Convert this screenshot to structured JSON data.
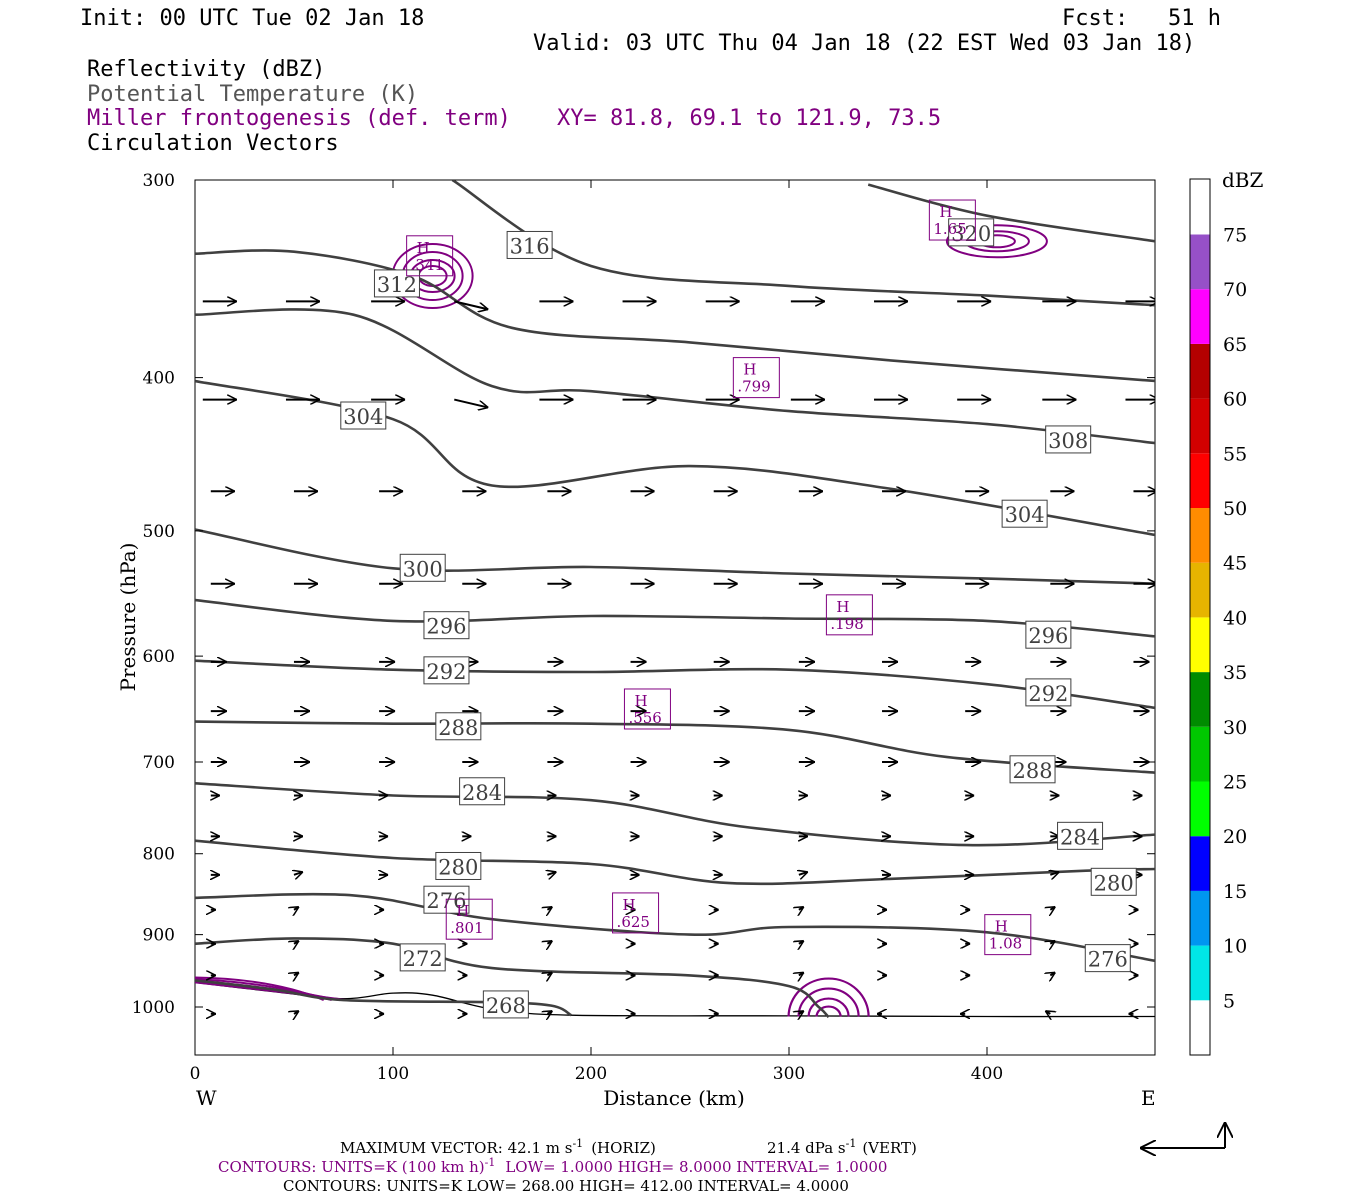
{
  "header": {
    "init": "Init: 00 UTC Tue 02 Jan 18",
    "fcst_label": "Fcst:",
    "fcst_value": "51 h",
    "valid": "Valid: 03 UTC Thu 04 Jan 18 (22 EST Wed 03 Jan 18)"
  },
  "fields": {
    "reflectivity": "Reflectivity (dBZ)",
    "theta": "Potential Temperature (K)",
    "frontogenesis": "Miller frontogenesis (def. term)",
    "xy": "XY=  81.8, 69.1 to 121.9, 73.5",
    "vectors": "Circulation Vectors"
  },
  "axes": {
    "ylabel": "Pressure (hPa)",
    "xlabel": "Distance (km)",
    "west": "W",
    "east": "E",
    "y_ticks": [
      "300",
      "400",
      "500",
      "600",
      "700",
      "800",
      "900",
      "1000"
    ],
    "x_ticks": [
      "0",
      "100",
      "200",
      "300",
      "400"
    ]
  },
  "colorbar": {
    "title": "dBZ",
    "labels": [
      "5",
      "10",
      "15",
      "20",
      "25",
      "30",
      "35",
      "40",
      "45",
      "50",
      "55",
      "60",
      "65",
      "70",
      "75"
    ],
    "colors": [
      "#ffffff",
      "#00e6e6",
      "#0096f0",
      "#0000ff",
      "#00ff00",
      "#00c800",
      "#008c00",
      "#ffff00",
      "#e6b400",
      "#ff8c00",
      "#ff0000",
      "#d20000",
      "#b40000",
      "#ff00ff",
      "#9650c8",
      "#ffffff"
    ]
  },
  "footer": {
    "vector_max": "MAXIMUM VECTOR:  42.1 m s",
    "vector_horiz": "(HORIZ)",
    "vector_vert": "21.4 dPa s",
    "vector_vert_unit": "(VERT)",
    "contours_fronto": "CONTOURS:  UNITS=K (100 km h)",
    "fronto_rest": "LOW=   1.0000      HIGH=  8.0000      INTERVAL=   1.0000",
    "contours_theta": "CONTOURS:  UNITS=K   LOW=   268.00       HIGH=   412.00       INTERVAL=    4.0000"
  },
  "chart_data": {
    "type": "cross-section",
    "x_range_km": [
      0,
      485
    ],
    "y_range_hpa": [
      300,
      1040
    ],
    "y_scale": "log-pressure",
    "grid": false,
    "theta_contours": [
      {
        "value": 268,
        "pts": [
          [
            0,
            962
          ],
          [
            40,
            975
          ],
          [
            75,
            990
          ],
          [
            150,
            993
          ],
          [
            180,
            998
          ],
          [
            190,
            1012
          ]
        ],
        "labels": [
          {
            "x": 157,
            "y": 997,
            "text": "268"
          }
        ]
      },
      {
        "value": 272,
        "pts": [
          [
            0,
            912
          ],
          [
            50,
            905
          ],
          [
            100,
            912
          ],
          [
            150,
            945
          ],
          [
            250,
            955
          ],
          [
            300,
            970
          ],
          [
            315,
            1000
          ],
          [
            320,
            1015
          ]
        ],
        "labels": [
          {
            "x": 115,
            "y": 931,
            "text": "272"
          }
        ]
      },
      {
        "value": 276,
        "pts": [
          [
            0,
            853
          ],
          [
            80,
            850
          ],
          [
            150,
            880
          ],
          [
            250,
            900
          ],
          [
            300,
            890
          ],
          [
            400,
            897
          ],
          [
            485,
            935
          ]
        ],
        "labels": [
          {
            "x": 127,
            "y": 856,
            "text": "276"
          },
          {
            "x": 461,
            "y": 932,
            "text": "276"
          }
        ]
      },
      {
        "value": 280,
        "pts": [
          [
            0,
            785
          ],
          [
            100,
            805
          ],
          [
            200,
            812
          ],
          [
            270,
            835
          ],
          [
            350,
            830
          ],
          [
            450,
            820
          ],
          [
            485,
            818
          ]
        ],
        "labels": [
          {
            "x": 133,
            "y": 815,
            "text": "280"
          },
          {
            "x": 464,
            "y": 834,
            "text": "280"
          }
        ]
      },
      {
        "value": 284,
        "pts": [
          [
            0,
            722
          ],
          [
            100,
            735
          ],
          [
            200,
            740
          ],
          [
            280,
            770
          ],
          [
            390,
            790
          ],
          [
            485,
            778
          ]
        ],
        "labels": [
          {
            "x": 145,
            "y": 731,
            "text": "284"
          },
          {
            "x": 447,
            "y": 780,
            "text": "284"
          }
        ]
      },
      {
        "value": 288,
        "pts": [
          [
            0,
            660
          ],
          [
            100,
            662
          ],
          [
            200,
            662
          ],
          [
            300,
            668
          ],
          [
            380,
            695
          ],
          [
            485,
            711
          ]
        ],
        "labels": [
          {
            "x": 133,
            "y": 665,
            "text": "288"
          },
          {
            "x": 423,
            "y": 708,
            "text": "288"
          }
        ]
      },
      {
        "value": 292,
        "pts": [
          [
            0,
            604
          ],
          [
            100,
            612
          ],
          [
            200,
            614
          ],
          [
            300,
            612
          ],
          [
            400,
            625
          ],
          [
            485,
            647
          ]
        ],
        "labels": [
          {
            "x": 127,
            "y": 613,
            "text": "292"
          },
          {
            "x": 431,
            "y": 633,
            "text": "292"
          }
        ]
      },
      {
        "value": 296,
        "pts": [
          [
            0,
            553
          ],
          [
            100,
            570
          ],
          [
            200,
            566
          ],
          [
            300,
            568
          ],
          [
            400,
            570
          ],
          [
            485,
            583
          ]
        ],
        "labels": [
          {
            "x": 127,
            "y": 574,
            "text": "296"
          },
          {
            "x": 431,
            "y": 582,
            "text": "296"
          }
        ]
      },
      {
        "value": 300,
        "pts": [
          [
            0,
            499
          ],
          [
            100,
            528
          ],
          [
            200,
            527
          ],
          [
            300,
            532
          ],
          [
            400,
            536
          ],
          [
            485,
            540
          ]
        ],
        "labels": [
          {
            "x": 115,
            "y": 528,
            "text": "300"
          }
        ]
      },
      {
        "value": 304,
        "pts": [
          [
            0,
            402
          ],
          [
            100,
            425
          ],
          [
            150,
            468
          ],
          [
            250,
            455
          ],
          [
            350,
            470
          ],
          [
            485,
            503
          ]
        ],
        "labels": [
          {
            "x": 85,
            "y": 423,
            "text": "304"
          },
          {
            "x": 419,
            "y": 488,
            "text": "304"
          }
        ]
      },
      {
        "value": 308,
        "pts": [
          [
            0,
            365
          ],
          [
            80,
            365
          ],
          [
            150,
            405
          ],
          [
            200,
            408
          ],
          [
            300,
            420
          ],
          [
            400,
            428
          ],
          [
            485,
            440
          ]
        ],
        "labels": [
          {
            "x": 441,
            "y": 438,
            "text": "308"
          }
        ]
      },
      {
        "value": 312,
        "pts": [
          [
            0,
            334
          ],
          [
            50,
            333
          ],
          [
            110,
            345
          ],
          [
            160,
            372
          ],
          [
            250,
            380
          ],
          [
            350,
            390
          ],
          [
            485,
            402
          ]
        ],
        "labels": [
          {
            "x": 102,
            "y": 349,
            "text": "312"
          }
        ]
      },
      {
        "value": 316,
        "pts": [
          [
            130,
            300
          ],
          [
            200,
            340
          ],
          [
            300,
            350
          ],
          [
            400,
            355
          ],
          [
            485,
            360
          ]
        ],
        "labels": [
          {
            "x": 169,
            "y": 330,
            "text": "316"
          }
        ]
      },
      {
        "value": 320,
        "pts": [
          [
            340,
            302
          ],
          [
            400,
            316
          ],
          [
            485,
            328
          ]
        ],
        "labels": [
          {
            "x": 392,
            "y": 324,
            "text": "320"
          }
        ]
      }
    ],
    "fronto_maxima": [
      {
        "x": 118,
        "y": 335,
        "value": ".341"
      },
      {
        "x": 382,
        "y": 318,
        "value": "1.65"
      },
      {
        "x": 283,
        "y": 400,
        "value": ".799"
      },
      {
        "x": 330,
        "y": 565,
        "value": ".198"
      },
      {
        "x": 228,
        "y": 648,
        "value": ".556"
      },
      {
        "x": 222,
        "y": 872,
        "value": ".625"
      },
      {
        "x": 138,
        "y": 880,
        "value": ".801"
      },
      {
        "x": 410,
        "y": 900,
        "value": "1.08"
      }
    ],
    "terrain_hpa": [
      [
        0,
        965
      ],
      [
        40,
        978
      ],
      [
        75,
        988
      ],
      [
        100,
        980
      ],
      [
        120,
        983
      ],
      [
        150,
        1003
      ],
      [
        190,
        1012
      ],
      [
        300,
        1013
      ],
      [
        400,
        1014
      ],
      [
        485,
        1014
      ]
    ],
    "vector_levels_hpa": [
      358,
      413,
      472,
      540,
      605,
      650,
      700,
      735,
      780,
      825,
      868,
      912,
      955,
      1010
    ],
    "vector_xs_km": [
      10,
      52,
      95,
      137,
      180,
      222,
      264,
      307,
      349,
      391,
      434,
      476
    ]
  }
}
